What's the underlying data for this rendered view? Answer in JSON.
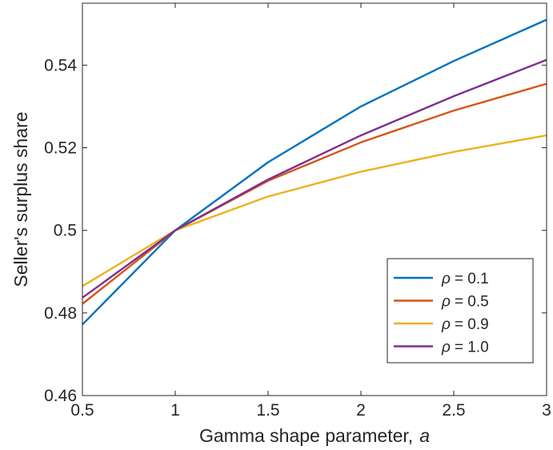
{
  "chart_data": {
    "type": "line",
    "title": "",
    "xlabel": "Gamma shape parameter,",
    "xlabel_symbol": "a",
    "ylabel": "Seller's surplus share",
    "xlim": [
      0.5,
      3
    ],
    "ylim": [
      0.46,
      0.555
    ],
    "x_ticks": [
      "0.5",
      "1",
      "1.5",
      "2",
      "2.5",
      "3"
    ],
    "y_ticks": [
      "0.46",
      "0.48",
      "0.5",
      "0.52",
      "0.54"
    ],
    "grid": false,
    "legend_position": "bottom-right",
    "legend_symbol": "ρ",
    "x": [
      0.5,
      1,
      1.5,
      2,
      2.5,
      3
    ],
    "series": [
      {
        "name": "= 0.1",
        "color": "#0072BD",
        "values": [
          0.4772,
          0.5,
          0.5165,
          0.53,
          0.541,
          0.551
        ]
      },
      {
        "name": "= 0.5",
        "color": "#D95319",
        "values": [
          0.4822,
          0.5,
          0.512,
          0.5213,
          0.529,
          0.5355
        ]
      },
      {
        "name": "= 0.9",
        "color": "#EDB120",
        "values": [
          0.4865,
          0.5,
          0.5082,
          0.5142,
          0.519,
          0.523
        ]
      },
      {
        "name": "= 1.0",
        "color": "#7E2F8E",
        "values": [
          0.4837,
          0.5,
          0.5123,
          0.523,
          0.5325,
          0.5413
        ]
      }
    ]
  }
}
